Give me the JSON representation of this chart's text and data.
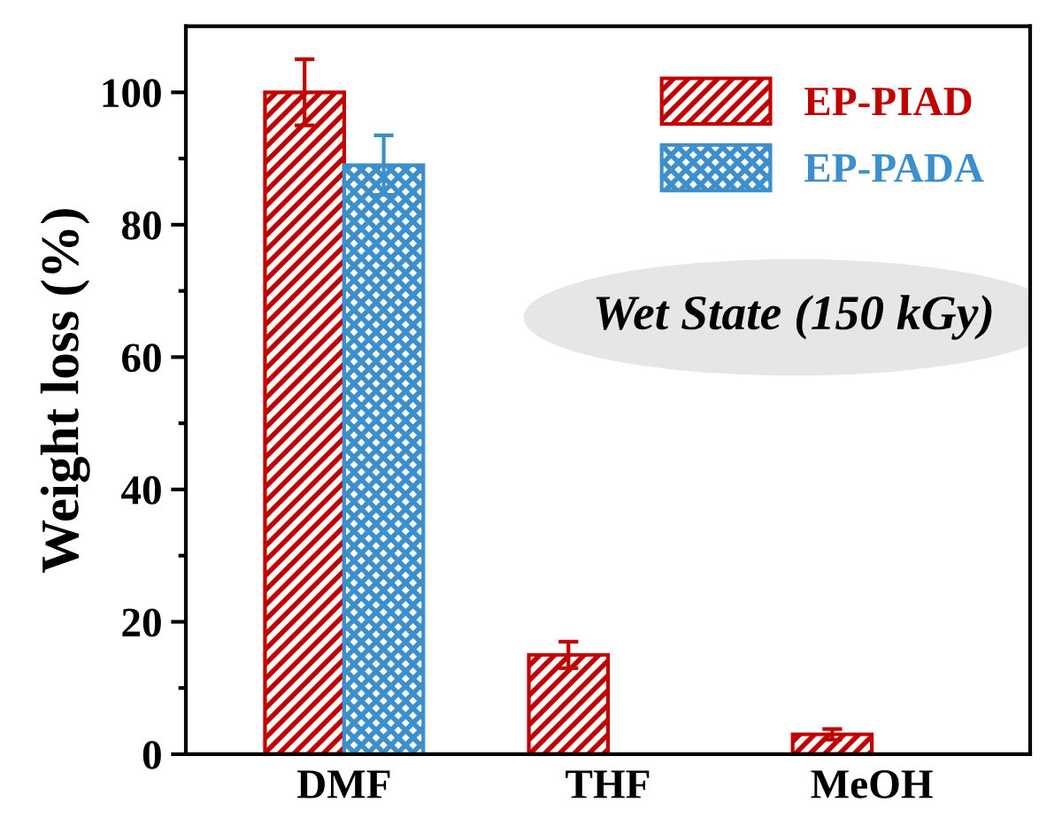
{
  "chart_data": {
    "type": "bar",
    "ylabel": "Weight loss (%)",
    "categories": [
      "DMF",
      "THF",
      "MeOH"
    ],
    "series": [
      {
        "name": "EP-PIAD",
        "color": "#c00000",
        "values": [
          100,
          15,
          3
        ],
        "errors": [
          5,
          2,
          0.8
        ]
      },
      {
        "name": "EP-PADA",
        "color": "#3d8fcc",
        "values": [
          89,
          null,
          null
        ],
        "errors": [
          4.5,
          null,
          null
        ]
      }
    ],
    "annotations": [
      "Wet State (150 kGy)"
    ],
    "ylim": [
      0,
      110
    ],
    "yticks": [
      0,
      20,
      40,
      60,
      80,
      100
    ],
    "grid": false,
    "legend": "top right"
  }
}
